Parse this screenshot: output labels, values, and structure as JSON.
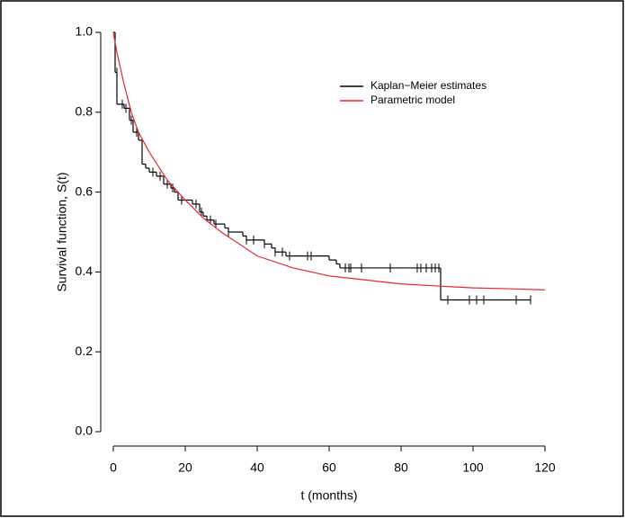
{
  "chart_data": {
    "type": "survival",
    "x_label": "t (months)",
    "y_label": "Survival function, S(t)",
    "xlim": [
      0,
      120
    ],
    "ylim": [
      0,
      1
    ],
    "xticks": [
      0,
      20,
      40,
      60,
      80,
      100,
      120
    ],
    "yticks": [
      {
        "value": 0,
        "label": "0.0"
      },
      0.2,
      0.4,
      0.6,
      0.8,
      {
        "value": 1,
        "label": "1.0"
      }
    ],
    "legend": "top-right",
    "series": [
      {
        "name": "Kaplan−Meier estimates",
        "color": "#000000",
        "step": true,
        "x": [
          0,
          0.5,
          1,
          3,
          4.5,
          5.5,
          7,
          8,
          9,
          10,
          12,
          14,
          16,
          17,
          18,
          22,
          24,
          25,
          26,
          28,
          31,
          32,
          36,
          37,
          42,
          44,
          45,
          48,
          60,
          62,
          63,
          91,
          116
        ],
        "values": [
          1.0,
          0.9,
          0.82,
          0.81,
          0.78,
          0.75,
          0.73,
          0.67,
          0.66,
          0.65,
          0.64,
          0.62,
          0.61,
          0.6,
          0.58,
          0.57,
          0.55,
          0.54,
          0.53,
          0.52,
          0.51,
          0.5,
          0.49,
          0.48,
          0.47,
          0.46,
          0.45,
          0.44,
          0.43,
          0.42,
          0.41,
          0.33,
          0.33
        ],
        "censored": {
          "x": [
            1,
            2.5,
            3.5,
            5,
            6.5,
            11,
            13,
            15,
            16.5,
            19,
            23,
            24.5,
            27,
            28.5,
            32,
            37,
            39,
            42,
            45,
            47,
            49,
            54,
            55,
            64.5,
            65.5,
            66,
            69,
            77,
            84.5,
            85.5,
            87,
            88.5,
            89.5,
            90.5,
            93,
            99,
            101,
            103,
            112,
            116
          ],
          "values": [
            0.9,
            0.82,
            0.81,
            0.78,
            0.75,
            0.65,
            0.64,
            0.62,
            0.61,
            0.58,
            0.57,
            0.55,
            0.53,
            0.52,
            0.5,
            0.48,
            0.48,
            0.47,
            0.45,
            0.45,
            0.44,
            0.44,
            0.44,
            0.41,
            0.41,
            0.41,
            0.41,
            0.41,
            0.41,
            0.41,
            0.41,
            0.41,
            0.41,
            0.41,
            0.33,
            0.33,
            0.33,
            0.33,
            0.33,
            0.33
          ]
        }
      },
      {
        "name": "Parametric model",
        "color": "#e8262b",
        "x": [
          0,
          1,
          2,
          3,
          5,
          7,
          10,
          15,
          20,
          25,
          30,
          40,
          50,
          60,
          70,
          80,
          90,
          100,
          110,
          120
        ],
        "values": [
          1.0,
          0.95,
          0.91,
          0.87,
          0.8,
          0.75,
          0.7,
          0.63,
          0.58,
          0.535,
          0.5,
          0.44,
          0.41,
          0.39,
          0.38,
          0.37,
          0.365,
          0.36,
          0.358,
          0.355
        ]
      }
    ]
  }
}
